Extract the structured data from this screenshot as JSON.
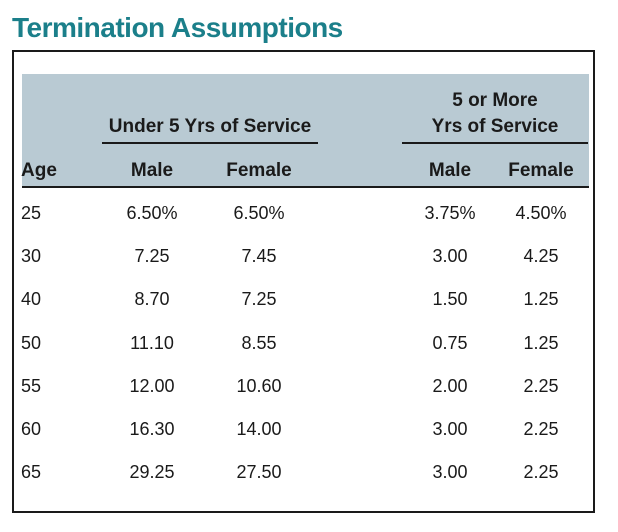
{
  "title": "Termination Assumptions",
  "table": {
    "group_under": "Under 5 Yrs of Service",
    "group_more_line1": "5 or More",
    "group_more_line2": "Yrs of Service",
    "columns": [
      "Age",
      "Male",
      "Female",
      "Male",
      "Female"
    ],
    "rows": [
      [
        "25",
        "6.50%",
        "6.50%",
        "3.75%",
        "4.50%"
      ],
      [
        "30",
        "7.25",
        "7.45",
        "3.00",
        "4.25"
      ],
      [
        "40",
        "8.70",
        "7.25",
        "1.50",
        "1.25"
      ],
      [
        "50",
        "11.10",
        "8.55",
        "0.75",
        "1.25"
      ],
      [
        "55",
        "12.00",
        "10.60",
        "2.00",
        "2.25"
      ],
      [
        "60",
        "16.30",
        "14.00",
        "3.00",
        "2.25"
      ],
      [
        "65",
        "29.25",
        "27.50",
        "3.00",
        "2.25"
      ]
    ]
  }
}
